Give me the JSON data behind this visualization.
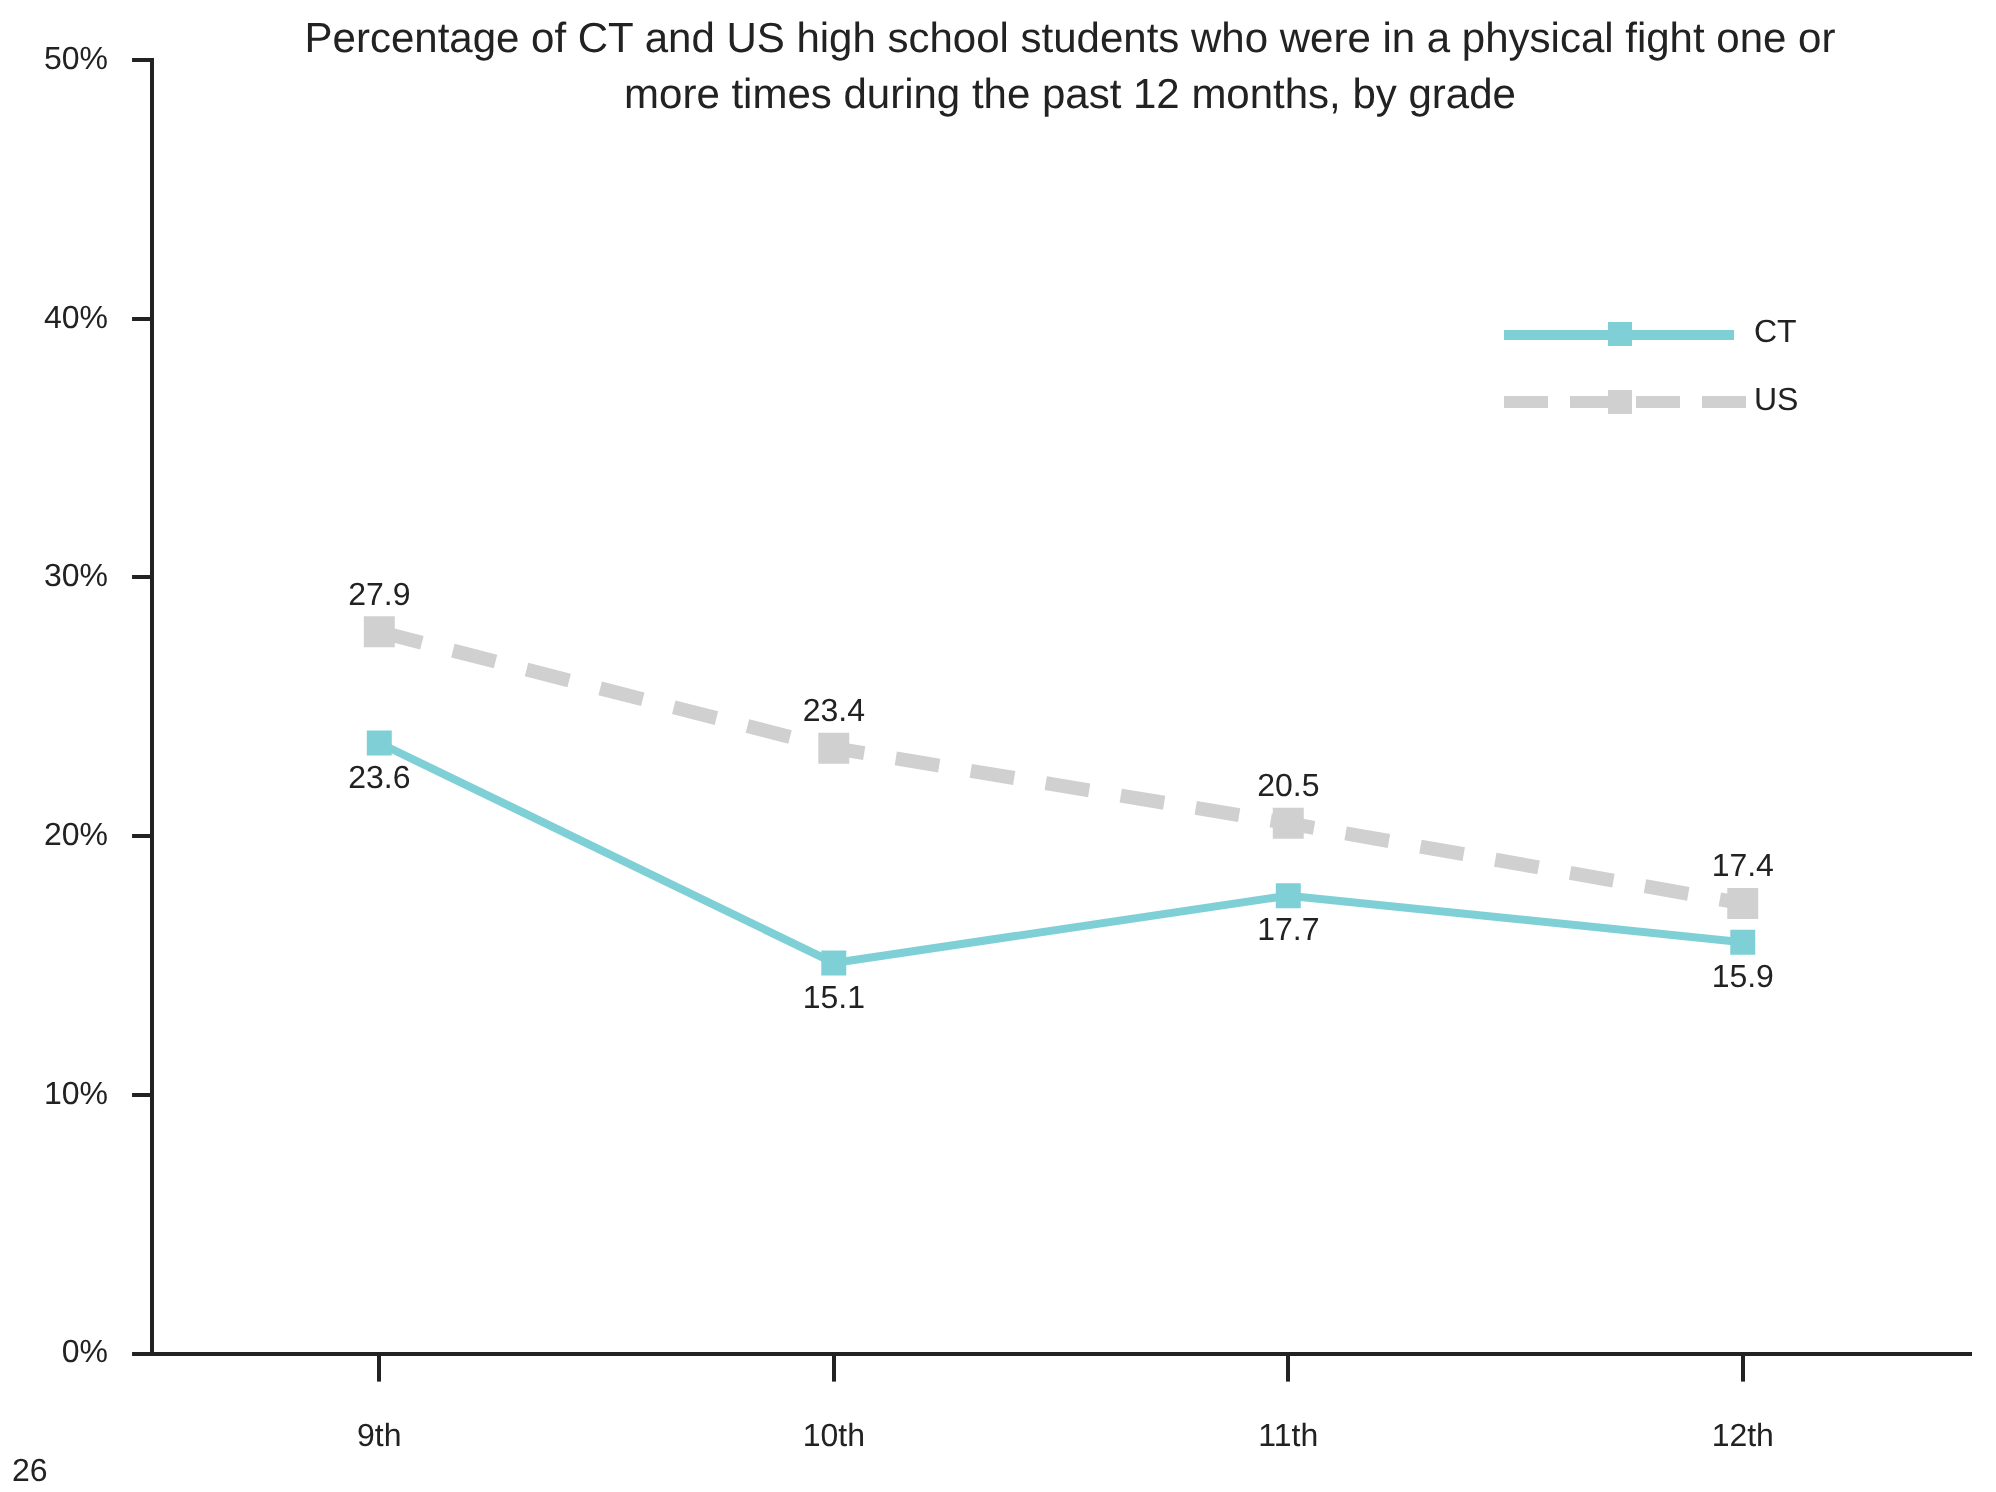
{
  "chart_data": {
    "type": "line",
    "title": "Percentage of CT and US high school students who were in a physical fight one or more times during the past 12 months, by grade",
    "categories": [
      "9th",
      "10th",
      "11th",
      "12th"
    ],
    "series": [
      {
        "name": "CT",
        "color": "#7fd0d6",
        "values": [
          23.6,
          15.1,
          17.7,
          15.9
        ],
        "line_style": "solid"
      },
      {
        "name": "US",
        "color": "#d0d0d0",
        "values": [
          27.9,
          23.4,
          20.5,
          17.4
        ],
        "line_style": "dashed"
      }
    ],
    "ylim": [
      0,
      50
    ],
    "yticks": [
      {
        "value": 0,
        "label": "0%"
      },
      {
        "value": 10,
        "label": "10%"
      },
      {
        "value": 20,
        "label": "20%"
      },
      {
        "value": 30,
        "label": "30%"
      },
      {
        "value": 40,
        "label": "40%"
      },
      {
        "value": 50,
        "label": "50%"
      }
    ],
    "data_labels": true,
    "marker": "square",
    "legend": "top right",
    "grid": false,
    "annotations": [
      "26"
    ]
  }
}
